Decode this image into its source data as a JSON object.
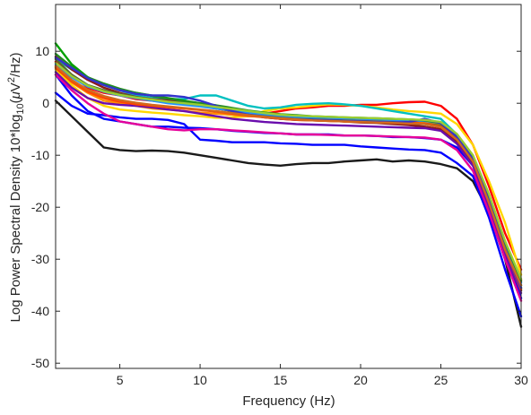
{
  "chart_data": {
    "type": "line",
    "title": "",
    "xlabel": "Frequency (Hz)",
    "ylabel_parts": [
      "Log Power Spectral Density 10*log",
      "10",
      "(",
      "μ",
      "V",
      "2",
      "/Hz)"
    ],
    "xlim": [
      1,
      30
    ],
    "ylim": [
      -51,
      19
    ],
    "xticks": [
      5,
      10,
      15,
      20,
      25,
      30
    ],
    "yticks": [
      10,
      0,
      -10,
      -20,
      -30,
      -40,
      -50
    ],
    "grid": false,
    "legend": "none",
    "x": [
      1,
      2,
      3,
      4,
      5,
      6,
      7,
      8,
      9,
      10,
      11,
      12,
      13,
      14,
      15,
      16,
      17,
      18,
      19,
      20,
      21,
      22,
      23,
      24,
      25,
      26,
      27,
      28,
      29,
      30
    ],
    "series": [
      {
        "color": "#1a1a1a",
        "values": [
          0.5,
          -2.5,
          -5.5,
          -8.5,
          -9.0,
          -9.2,
          -9.1,
          -9.2,
          -9.5,
          -10.0,
          -10.5,
          -11.0,
          -11.5,
          -11.8,
          -12.0,
          -11.7,
          -11.5,
          -11.5,
          -11.2,
          -11.0,
          -10.8,
          -11.2,
          -11.0,
          -11.2,
          -11.7,
          -12.5,
          -15.0,
          -21.0,
          -30.0,
          -43.0
        ]
      },
      {
        "color": "#0000ff",
        "values": [
          2.0,
          -0.5,
          -2.0,
          -2.3,
          -2.7,
          -3.0,
          -3.0,
          -3.2,
          -4.0,
          -7.0,
          -7.2,
          -7.5,
          -7.5,
          -7.5,
          -7.7,
          -7.8,
          -8.0,
          -8.0,
          -8.0,
          -8.3,
          -8.5,
          -8.7,
          -8.9,
          -9.0,
          -9.5,
          -11.5,
          -14.0,
          -22.0,
          -32.0,
          -41.0
        ]
      },
      {
        "color": "#0000ff",
        "values": [
          5.5,
          1.5,
          -1.5,
          -3.0,
          -3.5,
          -4.0,
          -4.5,
          -4.5,
          -4.7,
          -4.8,
          -5.0,
          -5.3,
          -5.5,
          -5.7,
          -5.8,
          -6.0,
          -6.0,
          -6.0,
          -6.2,
          -6.2,
          -6.3,
          -6.5,
          -6.5,
          -6.7,
          -7.0,
          -8.5,
          -12.0,
          -19.0,
          -29.0,
          -37.5
        ]
      },
      {
        "color": "#ff0000",
        "values": [
          8.0,
          5.5,
          3.0,
          2.0,
          1.5,
          0.8,
          0.5,
          0.2,
          0.0,
          -0.5,
          -1.0,
          -1.5,
          -2.0,
          -2.0,
          -1.5,
          -1.0,
          -0.8,
          -0.5,
          -0.5,
          -0.3,
          -0.3,
          0.0,
          0.2,
          0.3,
          -0.5,
          -3.0,
          -8.0,
          -16.0,
          -25.0,
          -32.0
        ]
      },
      {
        "color": "#ffd700",
        "values": [
          6.5,
          3.5,
          1.0,
          -0.5,
          -1.2,
          -1.5,
          -1.8,
          -2.0,
          -2.3,
          -2.5,
          -2.8,
          -2.7,
          -2.5,
          -1.5,
          -1.0,
          -0.8,
          -0.5,
          -0.2,
          -0.3,
          -0.5,
          -0.8,
          -1.2,
          -1.5,
          -1.7,
          -2.0,
          -4.0,
          -8.0,
          -15.0,
          -23.0,
          -33.0
        ]
      },
      {
        "color": "#00c0c0",
        "values": [
          8.5,
          6.5,
          5.0,
          3.5,
          2.5,
          1.5,
          1.0,
          0.8,
          0.8,
          1.5,
          1.5,
          0.5,
          -0.5,
          -1.0,
          -0.8,
          -0.3,
          -0.1,
          0.0,
          -0.2,
          -0.5,
          -1.0,
          -1.5,
          -2.0,
          -2.5,
          -3.0,
          -6.0,
          -11.0,
          -19.0,
          -28.0,
          -36.0
        ]
      },
      {
        "color": "#00a000",
        "values": [
          11.5,
          7.5,
          5.0,
          3.5,
          2.5,
          2.0,
          1.5,
          1.0,
          0.5,
          0.0,
          -0.5,
          -1.5,
          -2.0,
          -2.5,
          -3.0,
          -3.0,
          -3.0,
          -3.2,
          -3.5,
          -3.5,
          -3.7,
          -3.8,
          -4.0,
          -4.0,
          -4.5,
          -7.0,
          -11.0,
          -19.0,
          -27.0,
          -35.5
        ]
      },
      {
        "color": "#ff8c00",
        "values": [
          7.0,
          4.0,
          2.0,
          0.5,
          0.0,
          -0.5,
          -1.0,
          -1.2,
          -1.5,
          -1.8,
          -2.0,
          -2.2,
          -2.5,
          -2.6,
          -2.8,
          -3.0,
          -3.0,
          -3.0,
          -3.2,
          -3.2,
          -3.3,
          -3.4,
          -3.5,
          -3.5,
          -4.0,
          -6.5,
          -10.5,
          -18.0,
          -27.0,
          -34.0
        ]
      },
      {
        "color": "#8b1a1a",
        "values": [
          9.0,
          6.5,
          4.5,
          3.0,
          2.0,
          1.2,
          0.8,
          0.5,
          0.2,
          -0.3,
          -0.8,
          -1.5,
          -2.2,
          -2.7,
          -3.0,
          -3.2,
          -3.3,
          -3.4,
          -3.5,
          -3.7,
          -3.8,
          -4.0,
          -4.2,
          -4.5,
          -5.0,
          -7.5,
          -11.5,
          -19.5,
          -28.0,
          -36.0
        ]
      },
      {
        "color": "#6a0dad",
        "values": [
          6.0,
          3.0,
          1.0,
          0.0,
          -0.3,
          -0.5,
          -0.8,
          -1.2,
          -1.5,
          -2.0,
          -2.5,
          -3.0,
          -3.3,
          -3.6,
          -3.8,
          -4.0,
          -4.1,
          -4.2,
          -4.3,
          -4.4,
          -4.5,
          -4.6,
          -4.7,
          -4.8,
          -5.3,
          -7.8,
          -12.0,
          -20.0,
          -29.0,
          -36.5
        ]
      },
      {
        "color": "#e60099",
        "values": [
          5.5,
          2.5,
          0.0,
          -2.0,
          -3.5,
          -4.0,
          -4.5,
          -5.0,
          -5.2,
          -5.0,
          -5.0,
          -5.2,
          -5.4,
          -5.6,
          -5.8,
          -6.0,
          -6.0,
          -6.1,
          -6.2,
          -6.2,
          -6.3,
          -6.4,
          -6.5,
          -6.6,
          -7.0,
          -9.0,
          -13.0,
          -21.0,
          -30.0,
          -38.0
        ]
      },
      {
        "color": "#556b2f",
        "values": [
          8.5,
          5.5,
          3.5,
          2.5,
          1.8,
          1.2,
          0.7,
          0.2,
          -0.2,
          -0.5,
          -1.0,
          -1.5,
          -2.0,
          -2.4,
          -2.7,
          -3.0,
          -3.1,
          -3.2,
          -3.3,
          -3.4,
          -3.5,
          -3.6,
          -3.8,
          -3.9,
          -4.3,
          -6.8,
          -11.0,
          -18.5,
          -27.5,
          -35.0
        ]
      },
      {
        "color": "#1e90ff",
        "values": [
          7.5,
          5.0,
          3.2,
          2.2,
          1.5,
          1.0,
          0.5,
          0.0,
          -0.3,
          -0.6,
          -1.0,
          -1.4,
          -1.8,
          -2.1,
          -2.4,
          -2.6,
          -2.7,
          -2.8,
          -2.9,
          -3.0,
          -3.1,
          -3.2,
          -3.3,
          -3.4,
          -3.8,
          -6.2,
          -10.5,
          -18.0,
          -27.0,
          -34.5
        ]
      },
      {
        "color": "#ff4500",
        "values": [
          6.8,
          4.2,
          2.2,
          1.0,
          0.3,
          -0.2,
          -0.5,
          -0.8,
          -1.0,
          -1.3,
          -1.6,
          -2.0,
          -2.4,
          -2.7,
          -3.0,
          -3.2,
          -3.3,
          -3.4,
          -3.5,
          -3.6,
          -3.6,
          -3.7,
          -3.8,
          -3.9,
          -4.5,
          -6.8,
          -11.0,
          -19.0,
          -28.0,
          -35.8
        ]
      },
      {
        "color": "#228b22",
        "values": [
          9.5,
          7.0,
          5.0,
          3.8,
          2.8,
          2.0,
          1.4,
          0.9,
          0.4,
          0.0,
          -0.4,
          -0.9,
          -1.4,
          -1.8,
          -2.1,
          -2.3,
          -2.5,
          -2.6,
          -2.7,
          -2.8,
          -2.9,
          -3.0,
          -3.1,
          -3.3,
          -3.8,
          -6.0,
          -10.2,
          -17.8,
          -26.8,
          -34.2
        ]
      },
      {
        "color": "#3333cc",
        "values": [
          8.8,
          6.8,
          4.8,
          3.5,
          2.5,
          1.8,
          1.5,
          1.5,
          1.2,
          0.5,
          -0.5,
          -1.5,
          -2.2,
          -2.6,
          -2.9,
          -3.1,
          -3.2,
          -3.3,
          -3.4,
          -3.5,
          -3.6,
          -3.7,
          -3.6,
          -3.0,
          -3.8,
          -6.5,
          -10.8,
          -18.8,
          -28.0,
          -35.5
        ]
      },
      {
        "color": "#d2691e",
        "values": [
          7.2,
          4.5,
          2.6,
          1.4,
          0.6,
          0.1,
          -0.3,
          -0.6,
          -0.9,
          -1.2,
          -1.5,
          -1.9,
          -2.3,
          -2.6,
          -2.9,
          -3.1,
          -3.3,
          -3.4,
          -3.5,
          -3.6,
          -3.7,
          -3.8,
          -3.9,
          -4.0,
          -4.6,
          -7.0,
          -11.2,
          -19.2,
          -28.2,
          -35.0
        ]
      },
      {
        "color": "#9acd32",
        "values": [
          7.8,
          5.2,
          3.4,
          2.3,
          1.6,
          1.1,
          0.7,
          0.3,
          0.0,
          -0.3,
          -0.7,
          -1.1,
          -1.5,
          -1.9,
          -2.2,
          -2.4,
          -2.5,
          -2.6,
          -2.7,
          -2.8,
          -2.9,
          -3.0,
          -3.1,
          -3.2,
          -3.6,
          -5.9,
          -10.0,
          -17.5,
          -26.5,
          -33.8
        ]
      }
    ]
  }
}
